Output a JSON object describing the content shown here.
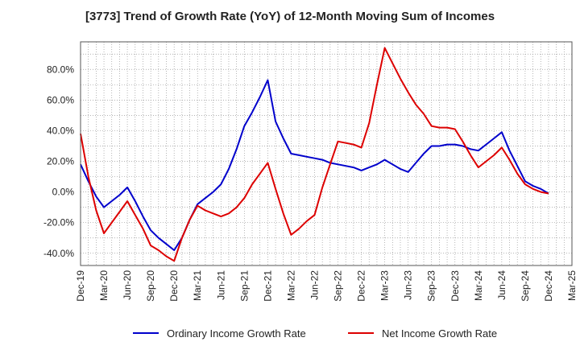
{
  "chart_data": {
    "type": "line",
    "title": "[3773]  Trend of Growth Rate (YoY) of 12-Month Moving Sum of Incomes",
    "xlabel": "",
    "ylabel": "",
    "x_ticks": [
      "Dec-19",
      "Mar-20",
      "Jun-20",
      "Sep-20",
      "Dec-20",
      "Mar-21",
      "Jun-21",
      "Sep-21",
      "Dec-21",
      "Mar-22",
      "Jun-22",
      "Sep-22",
      "Dec-22",
      "Mar-23",
      "Jun-23",
      "Sep-23",
      "Dec-23",
      "Mar-24",
      "Jun-24",
      "Sep-24",
      "Dec-24",
      "Mar-25"
    ],
    "y_ticks": [
      "80.0%",
      "60.0%",
      "40.0%",
      "20.0%",
      "0.0%",
      "-20.0%",
      "-40.0%"
    ],
    "y_tick_values": [
      80,
      60,
      40,
      20,
      0,
      -20,
      -40
    ],
    "ylim": [
      -48,
      98
    ],
    "grid": true,
    "legend_position": "bottom",
    "x": [
      "Dec-19",
      "Jan-20",
      "Feb-20",
      "Mar-20",
      "Apr-20",
      "May-20",
      "Jun-20",
      "Jul-20",
      "Aug-20",
      "Sep-20",
      "Oct-20",
      "Nov-20",
      "Dec-20",
      "Jan-21",
      "Feb-21",
      "Mar-21",
      "Apr-21",
      "May-21",
      "Jun-21",
      "Jul-21",
      "Aug-21",
      "Sep-21",
      "Oct-21",
      "Nov-21",
      "Dec-21",
      "Jan-22",
      "Feb-22",
      "Mar-22",
      "Apr-22",
      "May-22",
      "Jun-22",
      "Jul-22",
      "Aug-22",
      "Sep-22",
      "Oct-22",
      "Nov-22",
      "Dec-22",
      "Jan-23",
      "Feb-23",
      "Mar-23",
      "Apr-23",
      "May-23",
      "Jun-23",
      "Jul-23",
      "Aug-23",
      "Sep-23",
      "Oct-23",
      "Nov-23",
      "Dec-23",
      "Jan-24",
      "Feb-24",
      "Mar-24",
      "Apr-24",
      "May-24",
      "Jun-24",
      "Jul-24",
      "Aug-24",
      "Sep-24",
      "Oct-24",
      "Nov-24",
      "Dec-24"
    ],
    "series": [
      {
        "name": "Ordinary Income Growth Rate",
        "color": "#0000cc",
        "values": [
          18,
          7,
          -3,
          -10,
          -6,
          -2,
          3,
          -6,
          -16,
          -25,
          -30,
          -34,
          -38,
          -30,
          -18,
          -8,
          -4,
          0,
          5,
          15,
          28,
          43,
          52,
          62,
          73,
          46,
          35,
          25,
          24,
          23,
          22,
          21,
          19,
          18,
          17,
          16,
          14,
          16,
          18,
          21,
          18,
          15,
          13,
          19,
          25,
          30,
          30,
          31,
          31,
          30,
          28,
          27,
          31,
          35,
          39,
          27,
          17,
          7,
          4,
          2,
          -1
        ]
      },
      {
        "name": "Net Income Growth Rate",
        "color": "#dd0000",
        "values": [
          38,
          10,
          -12,
          -27,
          -20,
          -13,
          -6,
          -15,
          -24,
          -35,
          -38,
          -42,
          -45,
          -30,
          -18,
          -9,
          -12,
          -14,
          -16,
          -14,
          -10,
          -4,
          5,
          12,
          19,
          2,
          -14,
          -28,
          -24,
          -19,
          -15,
          3,
          18,
          33,
          32,
          31,
          29,
          45,
          70,
          94,
          84,
          74,
          65,
          57,
          51,
          43,
          42,
          42,
          41,
          33,
          24,
          16,
          20,
          24,
          29,
          21,
          12,
          5,
          2,
          0,
          -1
        ]
      }
    ]
  }
}
